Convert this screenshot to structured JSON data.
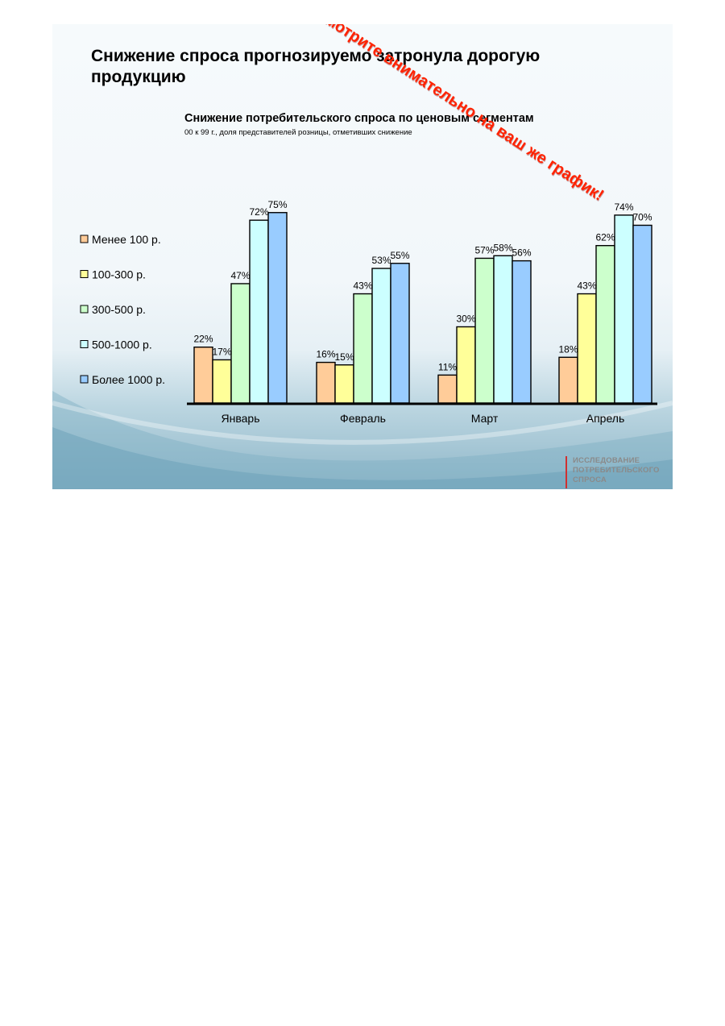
{
  "slide": {
    "title": "Снижение спроса прогнозируемо затронула дорогую продукцию",
    "stamp": "Смотрите внимательно на ваш же график!",
    "footer_lines": [
      "ИССЛЕДОВАНИЕ",
      "ПОТРЕБИТЕЛЬСКОГО",
      "СПРОСА"
    ],
    "footer_accent": "#d03030",
    "stamp_color": "#ff2200"
  },
  "chart_data": {
    "type": "bar",
    "title": "Снижение потребительского спроса по ценовым сегментам",
    "subtitle": "00 к 99 г., доля представителей розницы, отметивших снижение",
    "categories": [
      "Январь",
      "Февраль",
      "Март",
      "Апрель"
    ],
    "series": [
      {
        "name": "Менее 100 р.",
        "color": "#ffcc99",
        "values": [
          22,
          16,
          11,
          18
        ],
        "labels": [
          "22%",
          "16%",
          "11%",
          "18%"
        ]
      },
      {
        "name": "100-300 р.",
        "color": "#ffff99",
        "values": [
          17,
          15,
          30,
          43
        ],
        "labels": [
          "17%",
          "15%",
          "30%",
          "43%"
        ]
      },
      {
        "name": "300-500 р.",
        "color": "#ccffcc",
        "values": [
          47,
          43,
          57,
          62
        ],
        "labels": [
          "47%",
          "43%",
          "57%",
          "62%"
        ]
      },
      {
        "name": "500-1000 р.",
        "color": "#ccffff",
        "values": [
          72,
          53,
          58,
          74
        ],
        "labels": [
          "72%",
          "53%",
          "58%",
          "74%"
        ]
      },
      {
        "name": "Более 1000 р.",
        "color": "#99ccff",
        "values": [
          75,
          55,
          56,
          70
        ],
        "labels": [
          "75%",
          "55%",
          "56%",
          "70%"
        ]
      }
    ],
    "ylim": [
      0,
      78
    ],
    "grid": false,
    "legend_position": "left"
  }
}
